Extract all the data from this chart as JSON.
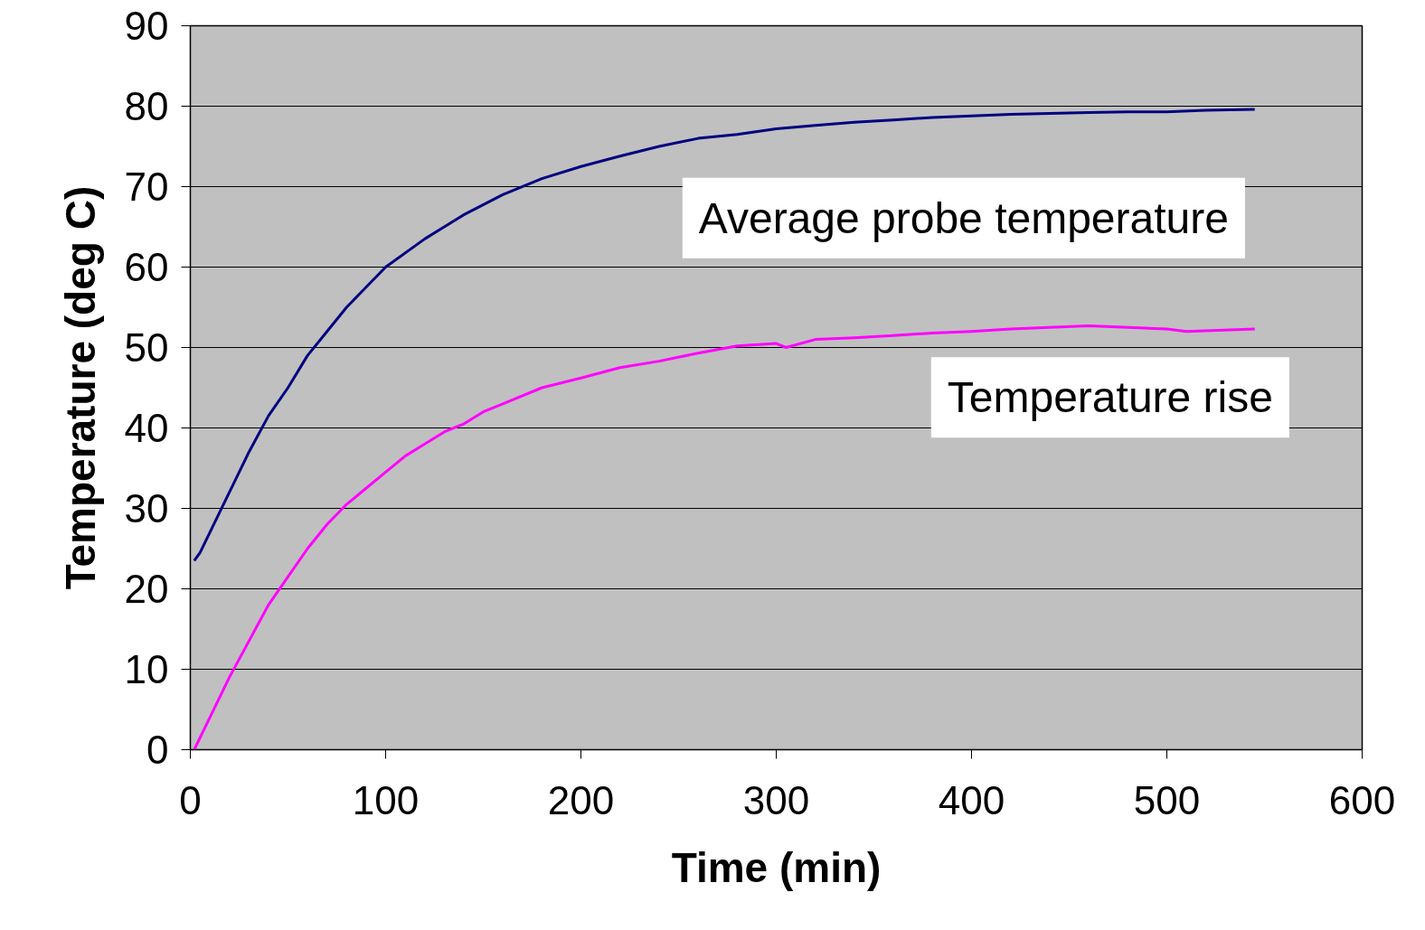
{
  "chart_data": {
    "type": "line",
    "xlabel": "Time (min)",
    "ylabel": "Temperature (deg C)",
    "xlim": [
      0,
      600
    ],
    "ylim": [
      0,
      90
    ],
    "xticks": [
      0,
      100,
      200,
      300,
      400,
      500,
      600
    ],
    "yticks": [
      0,
      10,
      20,
      30,
      40,
      50,
      60,
      70,
      80,
      90
    ],
    "grid": "y",
    "marker": "none",
    "line_style": "solid",
    "series": [
      {
        "name": "Average probe temperature",
        "color": "#000080",
        "x": [
          2,
          5,
          10,
          20,
          30,
          40,
          50,
          60,
          70,
          80,
          90,
          100,
          120,
          140,
          160,
          180,
          200,
          220,
          240,
          260,
          280,
          300,
          320,
          340,
          360,
          380,
          400,
          420,
          440,
          460,
          480,
          500,
          520,
          545
        ],
        "values": [
          23.5,
          24.5,
          27,
          32,
          37,
          41.5,
          45,
          49,
          52,
          55,
          57.5,
          60,
          63.5,
          66.5,
          69,
          71,
          72.5,
          73.8,
          75,
          76,
          76.5,
          77.2,
          77.6,
          78,
          78.3,
          78.6,
          78.8,
          79,
          79.1,
          79.2,
          79.3,
          79.3,
          79.5,
          79.6
        ]
      },
      {
        "name": "Temperature rise",
        "color": "#ff00ff",
        "x": [
          2,
          10,
          20,
          30,
          40,
          50,
          60,
          70,
          80,
          90,
          100,
          110,
          120,
          130,
          140,
          150,
          160,
          180,
          200,
          220,
          240,
          260,
          280,
          300,
          305,
          320,
          340,
          360,
          380,
          400,
          420,
          440,
          460,
          480,
          500,
          510,
          545
        ],
        "values": [
          0,
          4,
          9,
          13.5,
          18,
          21.5,
          25,
          28,
          30.5,
          32.5,
          34.5,
          36.5,
          38,
          39.5,
          40.5,
          42,
          43,
          45,
          46.2,
          47.5,
          48.3,
          49.3,
          50.2,
          50.5,
          50,
          51,
          51.2,
          51.5,
          51.8,
          52,
          52.3,
          52.5,
          52.7,
          52.5,
          52.3,
          52,
          52.3
        ]
      }
    ]
  }
}
